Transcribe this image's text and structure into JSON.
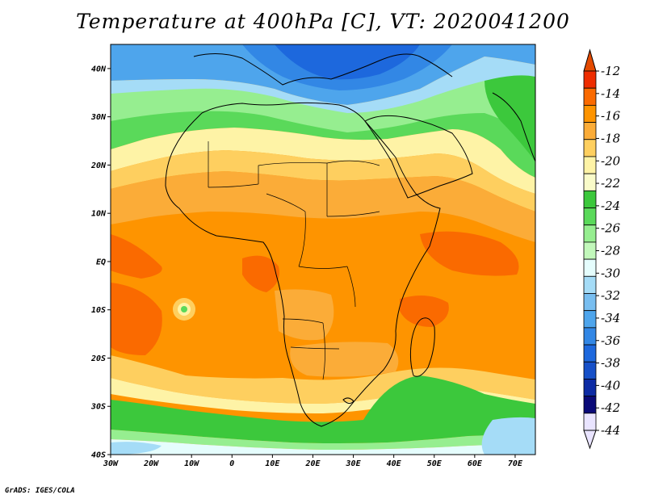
{
  "title": "Temperature at 400hPa [C], VT: 2020041200",
  "credit": "GrADS: IGES/COLA",
  "map": {
    "lon_range": [
      -30,
      75
    ],
    "lat_range": [
      -40,
      45
    ],
    "lat_ticks": [
      {
        "value": 40,
        "label": "40N"
      },
      {
        "value": 30,
        "label": "30N"
      },
      {
        "value": 20,
        "label": "20N"
      },
      {
        "value": 10,
        "label": "10N"
      },
      {
        "value": 0,
        "label": "EQ"
      },
      {
        "value": -10,
        "label": "10S"
      },
      {
        "value": -20,
        "label": "20S"
      },
      {
        "value": -30,
        "label": "30S"
      },
      {
        "value": -40,
        "label": "40S"
      }
    ],
    "lon_ticks": [
      {
        "value": -30,
        "label": "30W"
      },
      {
        "value": -20,
        "label": "20W"
      },
      {
        "value": -10,
        "label": "10W"
      },
      {
        "value": 0,
        "label": "0"
      },
      {
        "value": 10,
        "label": "10E"
      },
      {
        "value": 20,
        "label": "20E"
      },
      {
        "value": 30,
        "label": "30E"
      },
      {
        "value": 40,
        "label": "40E"
      },
      {
        "value": 50,
        "label": "50E"
      },
      {
        "value": 60,
        "label": "60E"
      },
      {
        "value": 70,
        "label": "70E"
      }
    ]
  },
  "colorbar": {
    "labels": [
      "-12",
      "-14",
      "-16",
      "-18",
      "-20",
      "-22",
      "-24",
      "-26",
      "-28",
      "-30",
      "-32",
      "-34",
      "-36",
      "-38",
      "-40",
      "-42",
      "-44"
    ],
    "colors": [
      "#ee2d00",
      "#fa6a00",
      "#fe9400",
      "#fbac38",
      "#fecf5f",
      "#fef3a6",
      "#f9fbc9",
      "#3cc83c",
      "#5ad95a",
      "#96ee90",
      "#c2f8bb",
      "#e5fdfd",
      "#a5dcf7",
      "#78bef0",
      "#4ea5ec",
      "#3287e5",
      "#1d68dd",
      "#1650c8",
      "#0d2ba4",
      "#0a0a78",
      "#e9e4ff"
    ],
    "top_arrow_color": "#e34a00",
    "bottom_arrow_color": "#e9e4ff"
  }
}
